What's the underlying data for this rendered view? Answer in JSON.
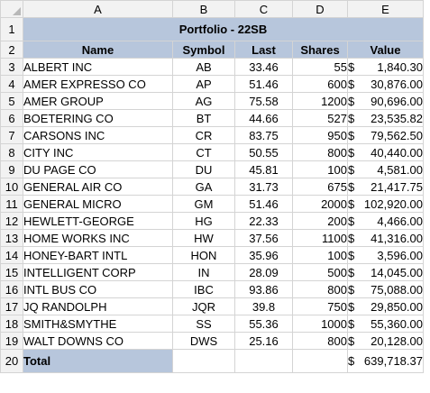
{
  "columns": [
    "A",
    "B",
    "C",
    "D",
    "E"
  ],
  "title": "Portfolio - 22SB",
  "headers": {
    "name": "Name",
    "symbol": "Symbol",
    "last": "Last",
    "shares": "Shares",
    "value": "Value"
  },
  "rows": [
    {
      "num": "3",
      "name": "ALBERT INC",
      "symbol": "AB",
      "last": "33.46",
      "shares": "55",
      "value": "1,840.30"
    },
    {
      "num": "4",
      "name": "AMER EXPRESSO CO",
      "symbol": "AP",
      "last": "51.46",
      "shares": "600",
      "value": "30,876.00"
    },
    {
      "num": "5",
      "name": "AMER GROUP",
      "symbol": "AG",
      "last": "75.58",
      "shares": "1200",
      "value": "90,696.00"
    },
    {
      "num": "6",
      "name": "BOETERING CO",
      "symbol": "BT",
      "last": "44.66",
      "shares": "527",
      "value": "23,535.82"
    },
    {
      "num": "7",
      "name": "CARSONS INC",
      "symbol": "CR",
      "last": "83.75",
      "shares": "950",
      "value": "79,562.50"
    },
    {
      "num": "8",
      "name": "CITY INC",
      "symbol": "CT",
      "last": "50.55",
      "shares": "800",
      "value": "40,440.00"
    },
    {
      "num": "9",
      "name": "DU PAGE CO",
      "symbol": "DU",
      "last": "45.81",
      "shares": "100",
      "value": "4,581.00"
    },
    {
      "num": "10",
      "name": "GENERAL AIR CO",
      "symbol": "GA",
      "last": "31.73",
      "shares": "675",
      "value": "21,417.75"
    },
    {
      "num": "11",
      "name": "GENERAL MICRO",
      "symbol": "GM",
      "last": "51.46",
      "shares": "2000",
      "value": "102,920.00"
    },
    {
      "num": "12",
      "name": "HEWLETT-GEORGE",
      "symbol": "HG",
      "last": "22.33",
      "shares": "200",
      "value": "4,466.00"
    },
    {
      "num": "13",
      "name": "HOME WORKS INC",
      "symbol": "HW",
      "last": "37.56",
      "shares": "1100",
      "value": "41,316.00"
    },
    {
      "num": "14",
      "name": "HONEY-BART INTL",
      "symbol": "HON",
      "last": "35.96",
      "shares": "100",
      "value": "3,596.00"
    },
    {
      "num": "15",
      "name": "INTELLIGENT CORP",
      "symbol": "IN",
      "last": "28.09",
      "shares": "500",
      "value": "14,045.00"
    },
    {
      "num": "16",
      "name": "INTL BUS CO",
      "symbol": "IBC",
      "last": "93.86",
      "shares": "800",
      "value": "75,088.00"
    },
    {
      "num": "17",
      "name": "JQ RANDOLPH",
      "symbol": "JQR",
      "last": "39.8",
      "shares": "750",
      "value": "29,850.00"
    },
    {
      "num": "18",
      "name": "SMITH&SMYTHE",
      "symbol": "SS",
      "last": "55.36",
      "shares": "1000",
      "value": "55,360.00"
    },
    {
      "num": "19",
      "name": "WALT DOWNS CO",
      "symbol": "DWS",
      "last": "25.16",
      "shares": "800",
      "value": "20,128.00"
    }
  ],
  "total": {
    "label": "Total",
    "currency": "$",
    "value": "639,718.37"
  },
  "currency_symbol": "$"
}
